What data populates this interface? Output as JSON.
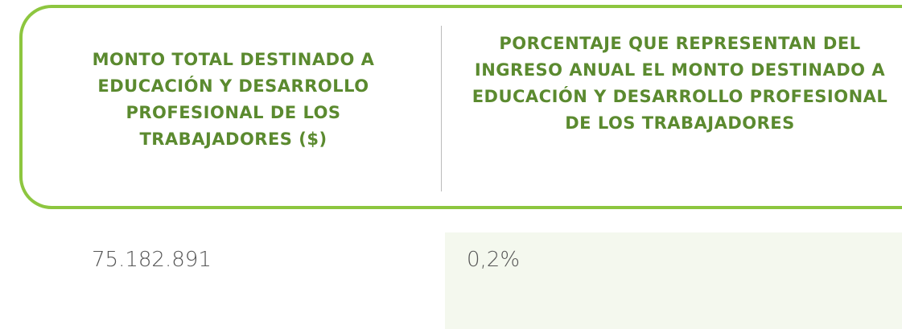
{
  "table": {
    "headers": [
      "MONTO TOTAL DESTINADO A EDUCACIÓN Y DESARROLLO PROFESIONAL DE LOS TRABAJADORES ($)",
      "PORCENTAJE QUE REPRESENTAN DEL INGRESO ANUAL EL MONTO DESTINADO A EDUCACIÓN Y DESARROLLO PROFESIONAL DE LOS TRABAJADORES"
    ],
    "rows": [
      [
        "75.182.891",
        "0,2%"
      ]
    ]
  }
}
